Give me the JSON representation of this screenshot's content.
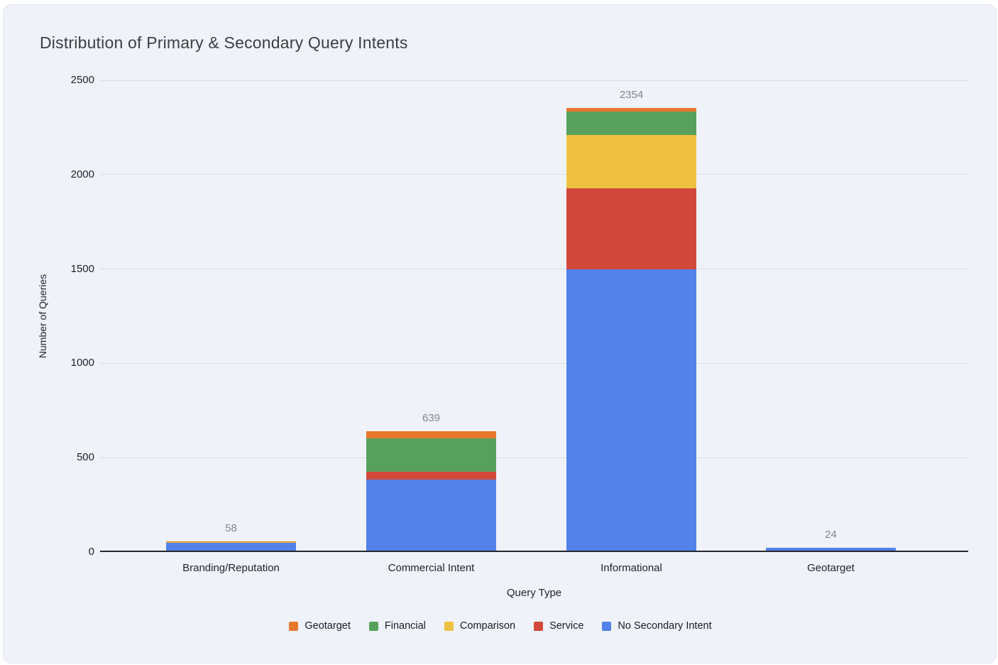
{
  "title": "Distribution of Primary & Secondary Query Intents",
  "chart_data": {
    "type": "bar",
    "stacked": true,
    "title": "Distribution of Primary & Secondary Query Intents",
    "xlabel": "Query Type",
    "ylabel": "Number of Queries",
    "categories": [
      "Branding/Reputation",
      "Commercial Intent",
      "Informational",
      "Geotarget"
    ],
    "totals": [
      58,
      639,
      2354,
      24
    ],
    "series": [
      {
        "name": "No Secondary Intent",
        "color": "#5282EA",
        "values": [
          50,
          385,
          1500,
          24
        ]
      },
      {
        "name": "Service",
        "color": "#D2493B",
        "values": [
          0,
          39,
          429,
          0
        ]
      },
      {
        "name": "Comparison",
        "color": "#EFC143",
        "values": [
          4,
          0,
          280,
          0
        ]
      },
      {
        "name": "Financial",
        "color": "#58A15D",
        "values": [
          0,
          178,
          127,
          0
        ]
      },
      {
        "name": "Geotarget",
        "color": "#E8772E",
        "values": [
          4,
          37,
          18,
          0
        ]
      }
    ],
    "legend_order": [
      "Geotarget",
      "Financial",
      "Comparison",
      "Service",
      "No Secondary Intent"
    ],
    "legend_position": "bottom",
    "yticks": [
      0,
      500,
      1000,
      1500,
      2000,
      2500
    ],
    "ylim": [
      0,
      2500
    ],
    "grid": true,
    "background_color": "#EFF2F8",
    "gridline_color": "#D9DDE2",
    "data_label_color": "#83878C"
  }
}
